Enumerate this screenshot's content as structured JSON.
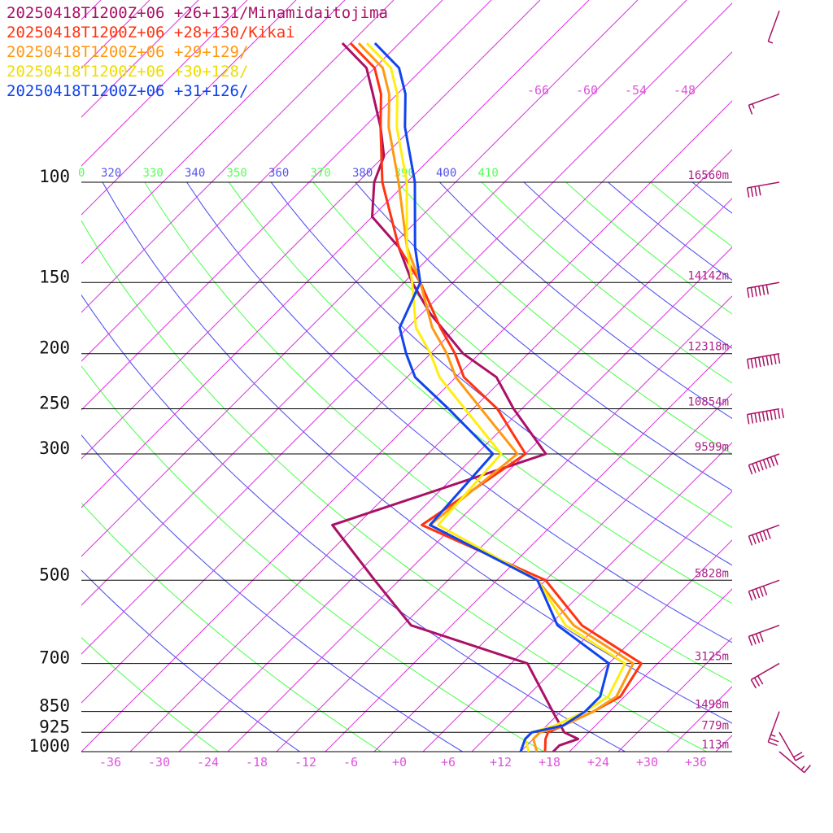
{
  "chart_data": {
    "type": "line",
    "title": "",
    "xlabel": "",
    "ylabel": "",
    "legend_position": "top-left",
    "pressure_levels": [
      {
        "p": 100,
        "label": "100",
        "height": "16560m"
      },
      {
        "p": 150,
        "label": "150",
        "height": "14142m"
      },
      {
        "p": 200,
        "label": "200",
        "height": "12318m"
      },
      {
        "p": 250,
        "label": "250",
        "height": "10854m"
      },
      {
        "p": 300,
        "label": "300",
        "height": "9599m"
      },
      {
        "p": 500,
        "label": "500",
        "height": "5828m"
      },
      {
        "p": 700,
        "label": "700",
        "height": "3125m"
      },
      {
        "p": 850,
        "label": "850",
        "height": "1498m"
      },
      {
        "p": 925,
        "label": "925",
        "height": "779m"
      },
      {
        "p": 1000,
        "label": "1000",
        "height": "113m"
      }
    ],
    "x_ticks": [
      "-36",
      "-30",
      "-24",
      "-18",
      "-12",
      "-6",
      "+0",
      "+6",
      "+12",
      "+18",
      "+24",
      "+30",
      "+36"
    ],
    "x_tick_values": [
      -36,
      -30,
      -24,
      -18,
      -12,
      -6,
      0,
      6,
      12,
      18,
      24,
      30,
      36
    ],
    "top_temp_labels": [
      "-66",
      "-60",
      "-54",
      "-48"
    ],
    "theta_labels": [
      {
        "text": "0",
        "color": "#55ff55"
      },
      {
        "text": "320",
        "color": "#5555ee"
      },
      {
        "text": "330",
        "color": "#55ff55"
      },
      {
        "text": "340",
        "color": "#5555ee"
      },
      {
        "text": "350",
        "color": "#55ff55"
      },
      {
        "text": "360",
        "color": "#5555ee"
      },
      {
        "text": "370",
        "color": "#55ff55"
      },
      {
        "text": "380",
        "color": "#5555ee"
      },
      {
        "text": "390",
        "color": "#55ff55"
      },
      {
        "text": "400",
        "color": "#5555ee"
      },
      {
        "text": "410",
        "color": "#55ff55"
      }
    ],
    "xlim": [
      -40,
      40
    ],
    "ylim_pressure": [
      100,
      1000
    ],
    "y_scale": "log",
    "grid": true,
    "colors": {
      "isobar": "#000000",
      "isotherm": "#dd33dd",
      "theta_a": "#55ff55",
      "theta_b": "#5555ee",
      "label_pink": "#dd55dd",
      "height_label": "#aa2288"
    },
    "series": [
      {
        "name": "20250418T1200Z+06 +26+131/Minamidaitojima",
        "color": "#aa1166",
        "temperature": [
          [
            1000,
            18
          ],
          [
            975,
            18
          ],
          [
            950,
            19.5
          ],
          [
            925,
            17
          ],
          [
            850,
            13
          ],
          [
            700,
            4
          ],
          [
            600,
            -15
          ],
          [
            500,
            -25
          ],
          [
            400,
            -37
          ],
          [
            300,
            -19.5
          ],
          [
            250,
            -29
          ],
          [
            220,
            -35
          ],
          [
            200,
            -42
          ],
          [
            170,
            -51
          ],
          [
            150,
            -57
          ],
          [
            130,
            -63
          ],
          [
            115,
            -70
          ],
          [
            100,
            -74
          ],
          [
            90,
            -76
          ],
          [
            80,
            -80
          ],
          [
            70,
            -85
          ],
          [
            63,
            -89
          ],
          [
            57,
            -95
          ]
        ],
        "wind": [
          [
            1000,
            130,
            15
          ],
          [
            925,
            150,
            20
          ],
          [
            850,
            200,
            25
          ],
          [
            700,
            240,
            30
          ],
          [
            600,
            250,
            40
          ],
          [
            500,
            250,
            50
          ],
          [
            400,
            250,
            60
          ],
          [
            300,
            250,
            80
          ],
          [
            250,
            260,
            100
          ],
          [
            200,
            260,
            90
          ],
          [
            150,
            260,
            60
          ],
          [
            100,
            260,
            40
          ],
          [
            70,
            250,
            15
          ],
          [
            50,
            200,
            5
          ]
        ]
      },
      {
        "name": "20250418T1200Z+06 +28+130/Kikai",
        "color": "#ff3311",
        "temperature": [
          [
            1000,
            17
          ],
          [
            950,
            15.5
          ],
          [
            925,
            15
          ],
          [
            900,
            16
          ],
          [
            850,
            18
          ],
          [
            800,
            19.5
          ],
          [
            700,
            18
          ],
          [
            600,
            6
          ],
          [
            500,
            -4
          ],
          [
            400,
            -26
          ],
          [
            300,
            -22
          ],
          [
            250,
            -31
          ],
          [
            220,
            -39
          ],
          [
            200,
            -43
          ],
          [
            180,
            -48
          ],
          [
            150,
            -56
          ],
          [
            130,
            -63
          ],
          [
            100,
            -73
          ],
          [
            80,
            -80
          ],
          [
            70,
            -84
          ],
          [
            63,
            -88
          ],
          [
            57,
            -94
          ]
        ]
      },
      {
        "name": "20250418T1200Z+06 +29+129/",
        "color": "#ff9911",
        "temperature": [
          [
            1000,
            16
          ],
          [
            950,
            14
          ],
          [
            925,
            14
          ],
          [
            900,
            16
          ],
          [
            850,
            18
          ],
          [
            800,
            19
          ],
          [
            700,
            17
          ],
          [
            600,
            5
          ],
          [
            500,
            -5
          ],
          [
            400,
            -25
          ],
          [
            300,
            -23
          ],
          [
            250,
            -33
          ],
          [
            220,
            -40
          ],
          [
            200,
            -44
          ],
          [
            180,
            -49
          ],
          [
            150,
            -56
          ],
          [
            130,
            -62
          ],
          [
            100,
            -71
          ],
          [
            80,
            -79
          ],
          [
            70,
            -83
          ],
          [
            63,
            -87
          ],
          [
            57,
            -93
          ]
        ]
      },
      {
        "name": "20250418T1200Z+06 +30+128/",
        "color": "#ffee11",
        "temperature": [
          [
            1000,
            15
          ],
          [
            950,
            13
          ],
          [
            925,
            13
          ],
          [
            900,
            15
          ],
          [
            850,
            17
          ],
          [
            800,
            18
          ],
          [
            700,
            16
          ],
          [
            600,
            4
          ],
          [
            500,
            -5
          ],
          [
            400,
            -24
          ],
          [
            300,
            -25
          ],
          [
            250,
            -35
          ],
          [
            220,
            -42
          ],
          [
            200,
            -46
          ],
          [
            180,
            -51
          ],
          [
            150,
            -57
          ],
          [
            130,
            -62
          ],
          [
            100,
            -70
          ],
          [
            80,
            -78
          ],
          [
            70,
            -82
          ],
          [
            63,
            -86
          ],
          [
            57,
            -92
          ]
        ]
      },
      {
        "name": "20250418T1200Z+06 +31+126/",
        "color": "#1144ee",
        "temperature": [
          [
            1000,
            14
          ],
          [
            950,
            13
          ],
          [
            925,
            13
          ],
          [
            900,
            16
          ],
          [
            850,
            17
          ],
          [
            800,
            17
          ],
          [
            700,
            14
          ],
          [
            600,
            3
          ],
          [
            500,
            -5
          ],
          [
            400,
            -25
          ],
          [
            300,
            -26
          ],
          [
            250,
            -37
          ],
          [
            220,
            -45
          ],
          [
            200,
            -49
          ],
          [
            180,
            -53
          ],
          [
            150,
            -56
          ],
          [
            130,
            -61
          ],
          [
            100,
            -69
          ],
          [
            80,
            -77
          ],
          [
            70,
            -81
          ],
          [
            63,
            -85
          ],
          [
            57,
            -91
          ]
        ]
      }
    ]
  }
}
